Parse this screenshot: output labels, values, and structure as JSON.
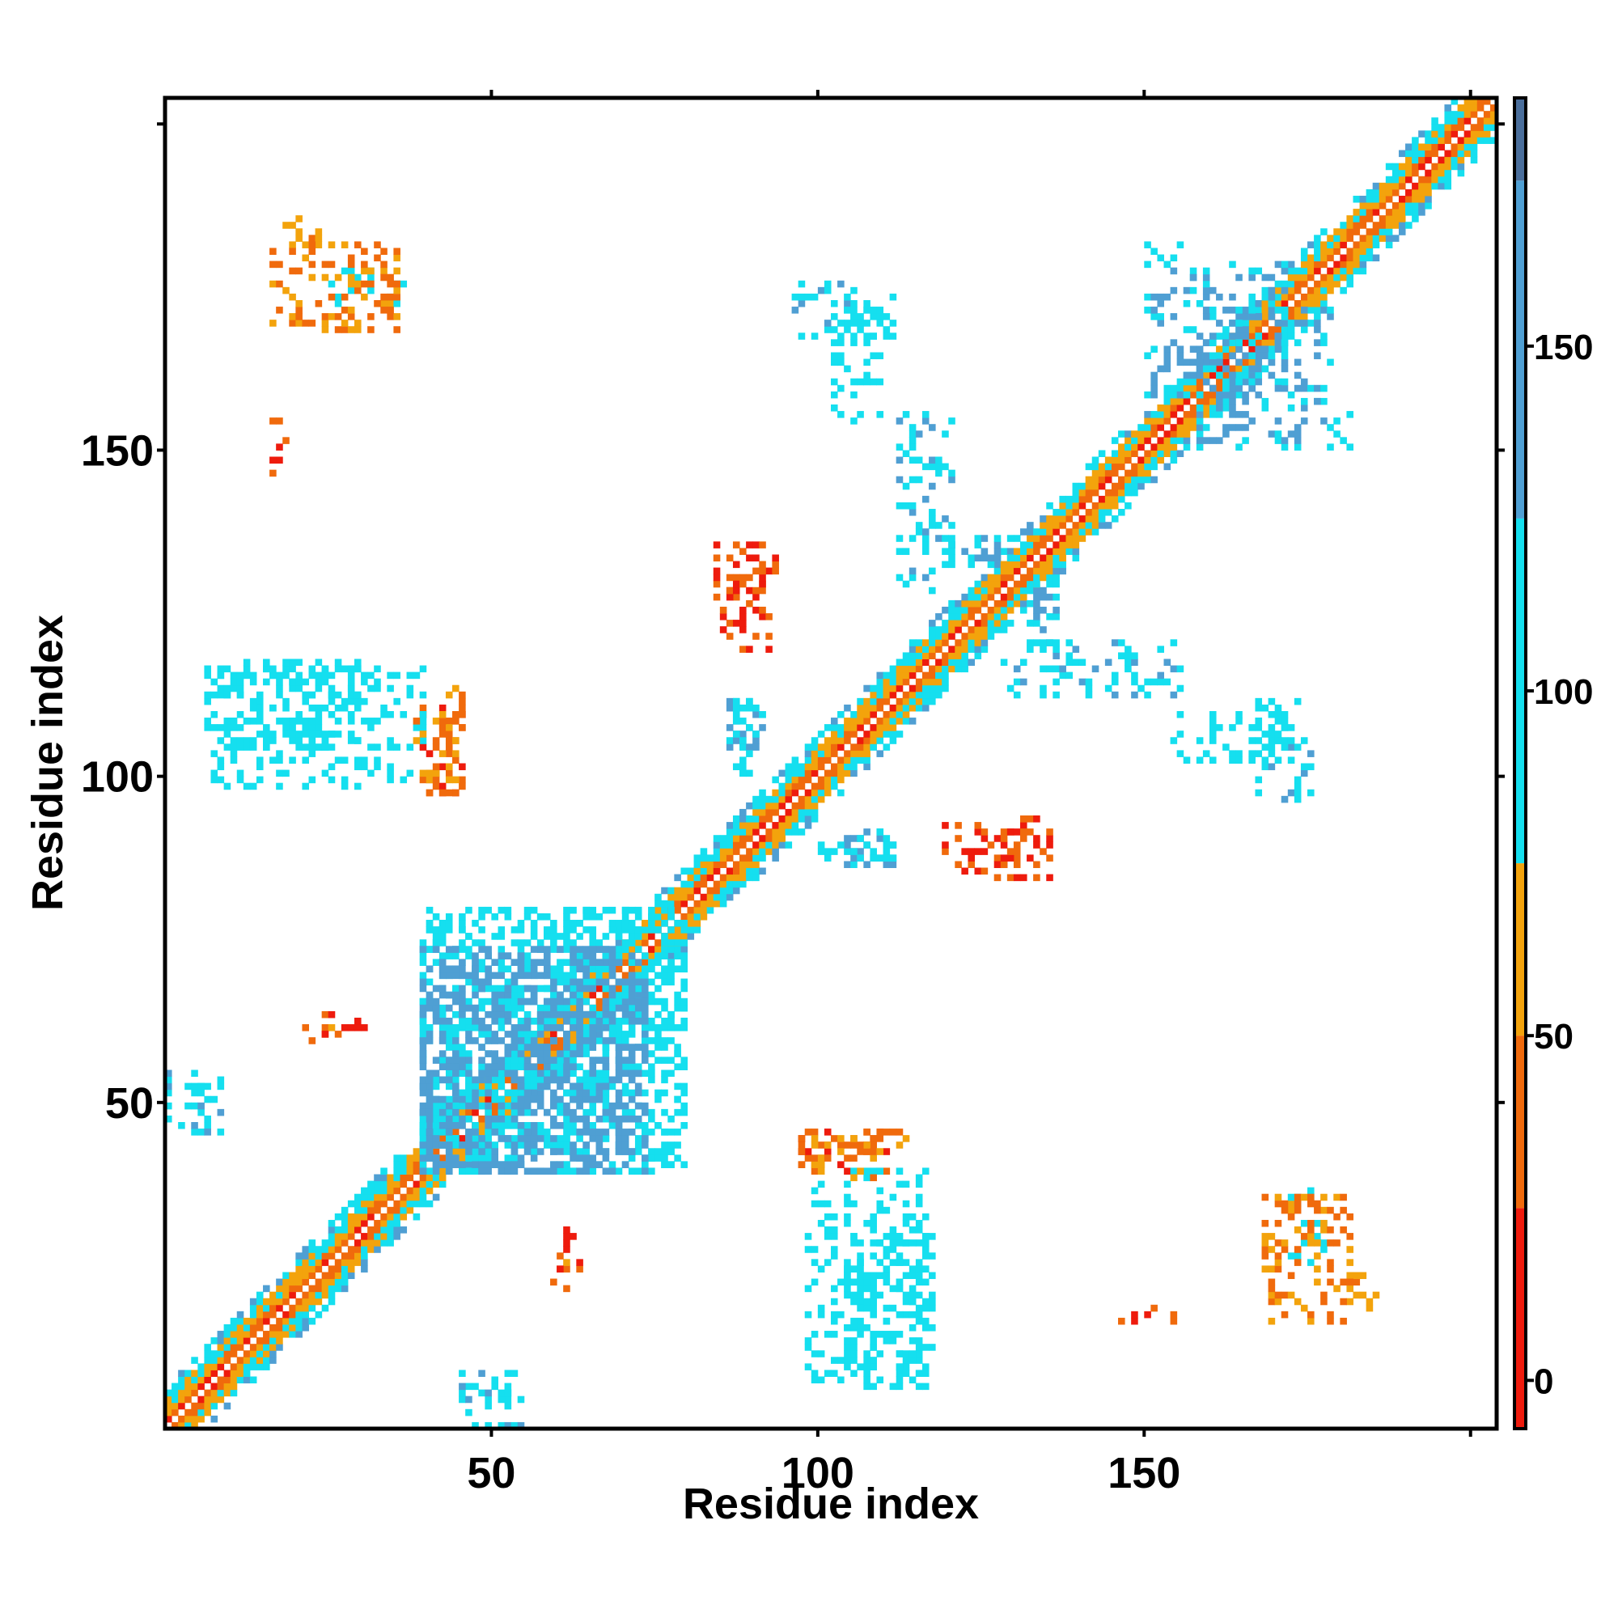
{
  "chart_data": {
    "type": "heatmap",
    "title": "",
    "xlabel": "Residue index",
    "ylabel": "Residue index",
    "xlim": [
      0,
      204
    ],
    "ylim": [
      0,
      204
    ],
    "xticks": [
      50,
      100,
      150,
      200
    ],
    "xtick_labels": [
      "50",
      "100",
      "150",
      ""
    ],
    "yticks": [
      50,
      100,
      150,
      200
    ],
    "ytick_labels": [
      "50",
      "100",
      "150",
      ""
    ],
    "grid": false,
    "colorbar": {
      "range": [
        -7,
        186
      ],
      "ticks": [
        0,
        50,
        100,
        150
      ],
      "tick_labels": [
        "0",
        "50",
        "100",
        "150"
      ],
      "bands": [
        {
          "from": -7,
          "to": 25,
          "color": "#ee1b0d"
        },
        {
          "from": 25,
          "to": 50,
          "color": "#f06a0c"
        },
        {
          "from": 50,
          "to": 75,
          "color": "#f3a30c"
        },
        {
          "from": 75,
          "to": 125,
          "color": "#15dfef"
        },
        {
          "from": 125,
          "to": 174,
          "color": "#4f9fd3"
        },
        {
          "from": 174,
          "to": 186,
          "color": "#4a6e9b"
        }
      ]
    },
    "diagonal": {
      "from": 1,
      "to": 204,
      "band_width": 6
    },
    "contact_regions": [
      {
        "x": [
          40,
          80
        ],
        "y": [
          40,
          80
        ],
        "value": 110
      },
      {
        "x": [
          40,
          74
        ],
        "y": [
          40,
          74
        ],
        "value": 140
      },
      {
        "x": [
          5,
          9
        ],
        "y": [
          46,
          54
        ],
        "value": 115
      },
      {
        "x": [
          40,
          46
        ],
        "y": [
          98,
          112
        ],
        "value": 35
      },
      {
        "x": [
          7,
          40
        ],
        "y": [
          99,
          117
        ],
        "value": 100
      },
      {
        "x": [
          19,
          25
        ],
        "y": [
          182,
          186
        ],
        "value": 60
      },
      {
        "x": [
          26,
          37
        ],
        "y": [
          173,
          178
        ],
        "value": 80
      },
      {
        "x": [
          17,
          18
        ],
        "y": [
          146,
          152
        ],
        "value": 15
      },
      {
        "x": [
          46,
          55
        ],
        "y": [
          1,
          7
        ],
        "value": 120
      },
      {
        "x": [
          60,
          62
        ],
        "y": [
          22,
          30
        ],
        "value": 40
      },
      {
        "x": [
          24,
          31
        ],
        "y": [
          60,
          64
        ],
        "value": 20
      },
      {
        "x": [
          85,
          94
        ],
        "y": [
          128,
          136
        ],
        "value": 30
      },
      {
        "x": [
          87,
          92
        ],
        "y": [
          105,
          113
        ],
        "value": 130
      },
      {
        "x": [
          99,
          112
        ],
        "y": [
          88,
          92
        ],
        "value": 105
      },
      {
        "x": [
          97,
          112
        ],
        "y": [
          168,
          176
        ],
        "value": 115
      },
      {
        "x": [
          98,
          114
        ],
        "y": [
          39,
          46
        ],
        "value": 50
      },
      {
        "x": [
          105,
          118
        ],
        "y": [
          9,
          30
        ],
        "value": 95
      },
      {
        "x": [
          120,
          134
        ],
        "y": [
          86,
          93
        ],
        "value": 25
      },
      {
        "x": [
          121,
          130
        ],
        "y": [
          133,
          137
        ],
        "value": 125
      },
      {
        "x": [
          129,
          156
        ],
        "y": [
          113,
          121
        ],
        "value": 120
      },
      {
        "x": [
          155,
          173
        ],
        "y": [
          103,
          110
        ],
        "value": 95
      },
      {
        "x": [
          151,
          158
        ],
        "y": [
          177,
          182
        ],
        "value": 110
      },
      {
        "x": [
          159,
          179
        ],
        "y": [
          151,
          172
        ],
        "value": 130
      },
      {
        "x": [
          169,
          182
        ],
        "y": [
          17,
          36
        ],
        "value": 45
      },
      {
        "x": [
          149,
          155
        ],
        "y": [
          17,
          19
        ],
        "value": 30
      }
    ]
  }
}
